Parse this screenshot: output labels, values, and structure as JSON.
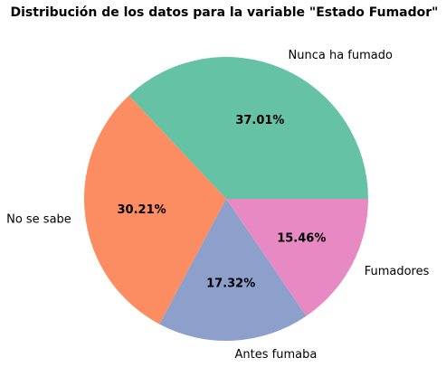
{
  "chart_data": {
    "type": "pie",
    "title": "Distribución de los datos para la variable \"Estado Fumador\"",
    "start_angle_deg": 0,
    "direction": "counterclockwise",
    "slices": [
      {
        "label": "Nunca ha fumado",
        "value": 37.01,
        "pct_label": "37.01%",
        "color": "#66c2a5"
      },
      {
        "label": "No se sabe",
        "value": 30.21,
        "pct_label": "30.21%",
        "color": "#fc8d62"
      },
      {
        "label": "Antes fumaba",
        "value": 17.32,
        "pct_label": "17.32%",
        "color": "#8da0cb"
      },
      {
        "label": "Fumadores",
        "value": 15.46,
        "pct_label": "15.46%",
        "color": "#e78ac3"
      }
    ]
  }
}
